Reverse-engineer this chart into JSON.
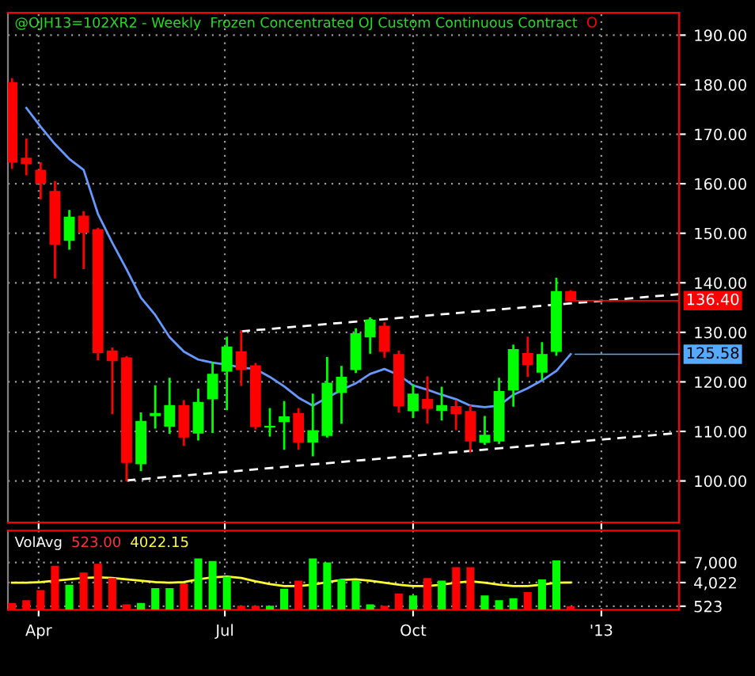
{
  "chart_data": [
    {
      "type": "candlestick",
      "title": "@OJH13=102XR2 - Weekly  Frozen Concentrated OJ Custom Continuous Contract",
      "x": [
        "2012-03-19",
        "2012-03-26",
        "2012-04-02",
        "2012-04-09",
        "2012-04-16",
        "2012-04-23",
        "2012-04-30",
        "2012-05-07",
        "2012-05-14",
        "2012-05-21",
        "2012-05-28",
        "2012-06-04",
        "2012-06-11",
        "2012-06-18",
        "2012-06-25",
        "2012-07-02",
        "2012-07-09",
        "2012-07-16",
        "2012-07-23",
        "2012-07-30",
        "2012-08-06",
        "2012-08-13",
        "2012-08-20",
        "2012-08-27",
        "2012-09-03",
        "2012-09-10",
        "2012-09-17",
        "2012-09-24",
        "2012-10-01",
        "2012-10-08",
        "2012-10-15",
        "2012-10-22",
        "2012-10-29",
        "2012-11-05",
        "2012-11-12",
        "2012-11-19",
        "2012-11-26",
        "2012-12-03",
        "2012-12-10",
        "2012-12-17"
      ],
      "ohlc": [
        [
          180.4,
          181.1,
          163.2,
          164.4
        ],
        [
          165.1,
          168.9,
          161.9,
          164.1
        ],
        [
          162.7,
          164.1,
          157.1,
          160.1
        ],
        [
          158.4,
          160.3,
          141.1,
          147.8
        ],
        [
          148.6,
          154.5,
          146.9,
          153.2
        ],
        [
          153.4,
          154.2,
          143.0,
          150.2
        ],
        [
          150.7,
          150.9,
          124.6,
          125.9
        ],
        [
          126.2,
          126.7,
          113.7,
          124.3
        ],
        [
          124.8,
          125.0,
          100.1,
          103.8
        ],
        [
          103.5,
          113.6,
          102.2,
          112.0
        ],
        [
          113.2,
          119.1,
          110.8,
          113.6
        ],
        [
          111.1,
          120.6,
          109.7,
          115.2
        ],
        [
          115.2,
          116.1,
          107.3,
          108.9
        ],
        [
          109.7,
          118.4,
          108.4,
          115.8
        ],
        [
          116.6,
          123.8,
          109.9,
          121.5
        ],
        [
          122.2,
          128.9,
          114.5,
          127.0
        ],
        [
          126.0,
          130.2,
          119.4,
          122.5
        ],
        [
          123.2,
          123.6,
          110.6,
          111.0
        ],
        [
          110.9,
          114.5,
          109.2,
          111.0
        ],
        [
          112.0,
          115.9,
          106.5,
          112.9
        ],
        [
          113.6,
          114.5,
          106.5,
          107.9
        ],
        [
          107.9,
          117.4,
          105.2,
          110.1
        ],
        [
          109.2,
          124.8,
          109.0,
          119.7
        ],
        [
          117.9,
          123.0,
          111.8,
          120.9
        ],
        [
          122.5,
          130.6,
          122.0,
          129.7
        ],
        [
          129.1,
          132.8,
          125.9,
          132.4
        ],
        [
          131.2,
          131.8,
          125.1,
          126.2
        ],
        [
          125.5,
          126.1,
          114.0,
          115.2
        ],
        [
          114.2,
          119.3,
          112.9,
          117.5
        ],
        [
          116.4,
          120.9,
          111.8,
          114.7
        ],
        [
          114.3,
          118.8,
          112.4,
          115.2
        ],
        [
          115.0,
          116.1,
          110.5,
          113.6
        ],
        [
          114.0,
          115.0,
          106.0,
          108.1
        ],
        [
          107.8,
          112.9,
          107.5,
          109.2
        ],
        [
          108.1,
          120.6,
          107.7,
          118.0
        ],
        [
          118.4,
          127.3,
          115.2,
          126.5
        ],
        [
          125.7,
          128.9,
          121.2,
          123.5
        ],
        [
          122.0,
          127.8,
          120.6,
          125.5
        ],
        [
          126.2,
          140.8,
          125.5,
          138.2
        ],
        [
          138.2,
          138.3,
          136.4,
          136.4
        ]
      ],
      "colors": [
        "#ff0000",
        "#ff0000",
        "#ff0000",
        "#ff0000",
        "#00ff00",
        "#ff0000",
        "#ff0000",
        "#ff0000",
        "#ff0000",
        "#00ff00",
        "#00ff00",
        "#00ff00",
        "#ff0000",
        "#00ff00",
        "#00ff00",
        "#00ff00",
        "#ff0000",
        "#ff0000",
        "#00ff00",
        "#00ff00",
        "#ff0000",
        "#00ff00",
        "#00ff00",
        "#00ff00",
        "#00ff00",
        "#00ff00",
        "#ff0000",
        "#ff0000",
        "#00ff00",
        "#ff0000",
        "#00ff00",
        "#ff0000",
        "#ff0000",
        "#00ff00",
        "#00ff00",
        "#00ff00",
        "#ff0000",
        "#00ff00",
        "#00ff00",
        "#ff0000"
      ],
      "series": [
        {
          "type": "line",
          "color": "#6699ff",
          "values": [
            null,
            175.3,
            171.5,
            168.0,
            165.0,
            162.8,
            153.9,
            148.1,
            142.7,
            137.0,
            133.5,
            129.0,
            126.1,
            124.5,
            123.9,
            123.5,
            122.9,
            122.6,
            121.0,
            119.1,
            116.8,
            115.2,
            116.8,
            118.4,
            119.7,
            121.6,
            122.6,
            121.4,
            119.3,
            118.4,
            117.4,
            116.5,
            115.2,
            114.9,
            115.2,
            117.4,
            118.7,
            120.3,
            122.2,
            125.58
          ]
        },
        {
          "type": "line",
          "color": "#ffffff",
          "line_style": "dashed",
          "x": [
            "2012-07-09",
            "2013-02-08"
          ],
          "values": [
            130.2,
            137.7
          ]
        },
        {
          "type": "line",
          "color": "#ffffff",
          "line_style": "dashed",
          "x": [
            "2012-05-14",
            "2013-02-08"
          ],
          "values": [
            100.1,
            109.7
          ]
        }
      ],
      "annotations": [
        "O",
        {
          "text": "136.40",
          "x": "2012-12-17",
          "y": 136.4
        },
        {
          "text": "125.58",
          "x": "2012-12-17",
          "y": 125.58
        }
      ],
      "xlim": [
        "2012-03-17",
        "2013-02-08"
      ],
      "xticks": [
        {
          "value": "2012-04-01",
          "label": null
        },
        {
          "value": "2012-07-01",
          "label": null
        },
        {
          "value": "2012-10-01",
          "label": null
        },
        {
          "value": "2013-01-01",
          "label": null
        }
      ],
      "ylim": [
        91.6,
        194.5
      ],
      "yticks": [
        {
          "value": 100,
          "label": "100.00"
        },
        {
          "value": 110,
          "label": "110.00"
        },
        {
          "value": 120,
          "label": "120.00"
        },
        {
          "value": 130,
          "label": "130.00"
        },
        {
          "value": 140,
          "label": "140.00"
        },
        {
          "value": 150,
          "label": "150.00"
        },
        {
          "value": 160,
          "label": "160.00"
        },
        {
          "value": 170,
          "label": "170.00"
        },
        {
          "value": 180,
          "label": "180.00"
        },
        {
          "value": 190,
          "label": "190.00"
        }
      ],
      "tick_labels": "y",
      "grid": true,
      "legend": false
    },
    {
      "type": "bar",
      "x": [
        "2012-03-19",
        "2012-03-26",
        "2012-04-02",
        "2012-04-09",
        "2012-04-16",
        "2012-04-23",
        "2012-04-30",
        "2012-05-07",
        "2012-05-14",
        "2012-05-21",
        "2012-05-28",
        "2012-06-04",
        "2012-06-11",
        "2012-06-18",
        "2012-06-25",
        "2012-07-02",
        "2012-07-09",
        "2012-07-16",
        "2012-07-23",
        "2012-07-30",
        "2012-08-06",
        "2012-08-13",
        "2012-08-20",
        "2012-08-27",
        "2012-09-03",
        "2012-09-10",
        "2012-09-17",
        "2012-09-24",
        "2012-10-01",
        "2012-10-08",
        "2012-10-15",
        "2012-10-22",
        "2012-10-29",
        "2012-11-05",
        "2012-11-12",
        "2012-11-19",
        "2012-11-26",
        "2012-12-03",
        "2012-12-10",
        "2012-12-17"
      ],
      "values": [
        1000,
        1400,
        2900,
        6500,
        3700,
        5500,
        6800,
        4700,
        800,
        1000,
        3200,
        3200,
        3900,
        7600,
        7200,
        4900,
        600,
        600,
        600,
        3100,
        4300,
        7600,
        7000,
        4500,
        4300,
        800,
        600,
        2400,
        2100,
        4700,
        4300,
        6300,
        6300,
        2100,
        1400,
        1700,
        2600,
        4500,
        7300,
        523
      ],
      "colors": [
        "#ff0000",
        "#ff0000",
        "#ff0000",
        "#ff0000",
        "#00ff00",
        "#ff0000",
        "#ff0000",
        "#ff0000",
        "#ff0000",
        "#00ff00",
        "#00ff00",
        "#00ff00",
        "#ff0000",
        "#00ff00",
        "#00ff00",
        "#00ff00",
        "#ff0000",
        "#ff0000",
        "#00ff00",
        "#00ff00",
        "#ff0000",
        "#00ff00",
        "#00ff00",
        "#00ff00",
        "#00ff00",
        "#00ff00",
        "#ff0000",
        "#ff0000",
        "#00ff00",
        "#ff0000",
        "#00ff00",
        "#ff0000",
        "#ff0000",
        "#00ff00",
        "#00ff00",
        "#00ff00",
        "#ff0000",
        "#00ff00",
        "#00ff00",
        "#ff0000"
      ],
      "series": [
        {
          "type": "line",
          "color": "#ffff33",
          "values": [
            4000,
            4000,
            4100,
            4300,
            4500,
            4700,
            4800,
            4700,
            4500,
            4300,
            4100,
            4000,
            4100,
            4500,
            4800,
            4900,
            4700,
            4200,
            3800,
            3500,
            3500,
            3700,
            4100,
            4400,
            4500,
            4300,
            4000,
            3700,
            3500,
            3500,
            3700,
            4000,
            4200,
            4000,
            3700,
            3500,
            3500,
            3700,
            4000,
            4022
          ]
        }
      ],
      "annotations": [
        "VolAvg",
        "523.00",
        "4022.15"
      ],
      "xlim": [
        "2012-03-17",
        "2013-02-08"
      ],
      "xticks": [
        {
          "value": "2012-04-01",
          "label": "Apr"
        },
        {
          "value": "2012-07-01",
          "label": "Jul"
        },
        {
          "value": "2012-10-01",
          "label": "Oct"
        },
        {
          "value": "2013-01-01",
          "label": "'13"
        }
      ],
      "ylim": [
        0,
        11700
      ],
      "yticks": [
        {
          "value": 523,
          "label": "523"
        },
        {
          "value": 4022,
          "label": "4,022"
        },
        {
          "value": 7000,
          "label": "7,000"
        }
      ],
      "grid": true,
      "legend": false
    }
  ]
}
